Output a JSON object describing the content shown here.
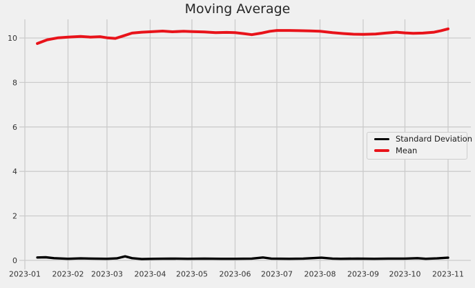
{
  "chart_data": {
    "type": "line",
    "title": "Moving Average",
    "xlabel": "",
    "ylabel": "",
    "x_tick_labels": [
      "2023-01",
      "2023-02",
      "2023-03",
      "2023-04",
      "2023-05",
      "2023-06",
      "2023-07",
      "2023-08",
      "2023-09",
      "2023-10",
      "2023-11"
    ],
    "y_ticks": [
      0,
      2,
      4,
      6,
      8,
      10
    ],
    "ylim": [
      -0.4,
      10.94
    ],
    "xlim": [
      "2022-12-27",
      "2023-11-17"
    ],
    "grid": true,
    "legend": {
      "position": "center-right",
      "entries": [
        "Standard Deviation",
        "Mean"
      ]
    },
    "colors": {
      "background": "#f0f0f0",
      "grid": "#cbcbcb",
      "title_text": "#262626",
      "tick_text": "#333333",
      "legend_border": "#cdcdcd"
    },
    "series": [
      {
        "name": "Standard Deviation",
        "color": "#000000",
        "line_width": 3.4,
        "x": [
          "2023-01-10",
          "2023-01-16",
          "2023-01-22",
          "2023-02-01",
          "2023-02-10",
          "2023-02-19",
          "2023-03-01",
          "2023-03-08",
          "2023-03-14",
          "2023-03-19",
          "2023-03-26",
          "2023-04-04",
          "2023-04-16",
          "2023-04-28",
          "2023-05-10",
          "2023-05-22",
          "2023-06-01",
          "2023-06-13",
          "2023-06-21",
          "2023-06-27",
          "2023-07-10",
          "2023-07-20",
          "2023-08-02",
          "2023-08-10",
          "2023-08-16",
          "2023-08-28",
          "2023-09-09",
          "2023-09-19",
          "2023-10-01",
          "2023-10-10",
          "2023-10-16",
          "2023-10-24",
          "2023-11-01"
        ],
        "values": [
          0.13,
          0.14,
          0.1,
          0.07,
          0.09,
          0.08,
          0.07,
          0.09,
          0.18,
          0.1,
          0.06,
          0.07,
          0.08,
          0.07,
          0.08,
          0.07,
          0.07,
          0.08,
          0.13,
          0.08,
          0.07,
          0.08,
          0.12,
          0.08,
          0.07,
          0.08,
          0.07,
          0.08,
          0.08,
          0.1,
          0.07,
          0.09,
          0.12
        ]
      },
      {
        "name": "Mean",
        "color": "#e8131a",
        "line_width": 4,
        "x": [
          "2023-01-10",
          "2023-01-17",
          "2023-01-25",
          "2023-02-01",
          "2023-02-10",
          "2023-02-17",
          "2023-02-24",
          "2023-03-01",
          "2023-03-07",
          "2023-03-13",
          "2023-03-19",
          "2023-03-26",
          "2023-04-01",
          "2023-04-10",
          "2023-04-17",
          "2023-04-25",
          "2023-05-01",
          "2023-05-10",
          "2023-05-18",
          "2023-05-26",
          "2023-06-01",
          "2023-06-07",
          "2023-06-13",
          "2023-06-20",
          "2023-06-26",
          "2023-07-01",
          "2023-07-10",
          "2023-07-17",
          "2023-07-25",
          "2023-08-01",
          "2023-08-10",
          "2023-08-18",
          "2023-08-25",
          "2023-09-01",
          "2023-09-10",
          "2023-09-17",
          "2023-09-25",
          "2023-10-01",
          "2023-10-07",
          "2023-10-14",
          "2023-10-22",
          "2023-10-27",
          "2023-11-01"
        ],
        "values": [
          9.75,
          9.92,
          10.01,
          10.04,
          10.07,
          10.04,
          10.06,
          10.01,
          9.98,
          10.1,
          10.22,
          10.26,
          10.28,
          10.31,
          10.28,
          10.3,
          10.29,
          10.27,
          10.24,
          10.25,
          10.24,
          10.2,
          10.15,
          10.22,
          10.3,
          10.34,
          10.34,
          10.33,
          10.32,
          10.3,
          10.24,
          10.2,
          10.17,
          10.16,
          10.18,
          10.22,
          10.26,
          10.23,
          10.21,
          10.22,
          10.26,
          10.33,
          10.41
        ]
      }
    ]
  }
}
